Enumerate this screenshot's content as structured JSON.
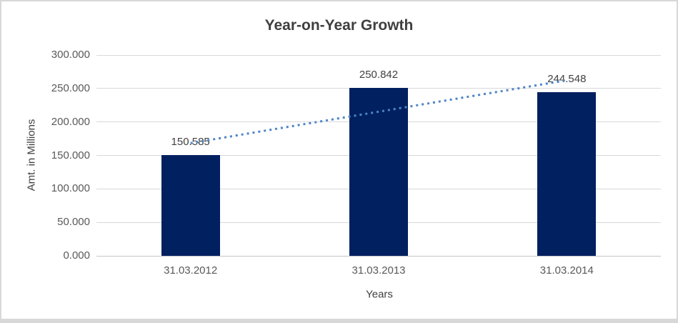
{
  "chart_data": {
    "type": "bar",
    "title": "Year-on-Year Growth",
    "xlabel": "Years",
    "ylabel": "Amt. in Millions",
    "categories": [
      "31.03.2012",
      "31.03.2013",
      "31.03.2014"
    ],
    "values": [
      150.585,
      250.842,
      244.548
    ],
    "data_labels": [
      "150.585",
      "250.842",
      "244.548"
    ],
    "ylim": [
      0,
      300
    ],
    "ytick_step": 50,
    "ytick_labels": [
      "0.000",
      "50.000",
      "100.000",
      "150.000",
      "200.000",
      "250.000",
      "300.000"
    ],
    "grid": true,
    "legend": "none",
    "trendline": {
      "type": "linear",
      "style": "dotted"
    },
    "colors": {
      "bar": "#002060",
      "trendline": "#4d85c7",
      "gridline": "#d9d9d9",
      "axis_line": "#c6c6c6",
      "title_text": "#3f3f3f",
      "tick_text": "#595959",
      "data_label_text": "#404040",
      "border": "#d8d8d8",
      "background": "#ffffff"
    }
  }
}
